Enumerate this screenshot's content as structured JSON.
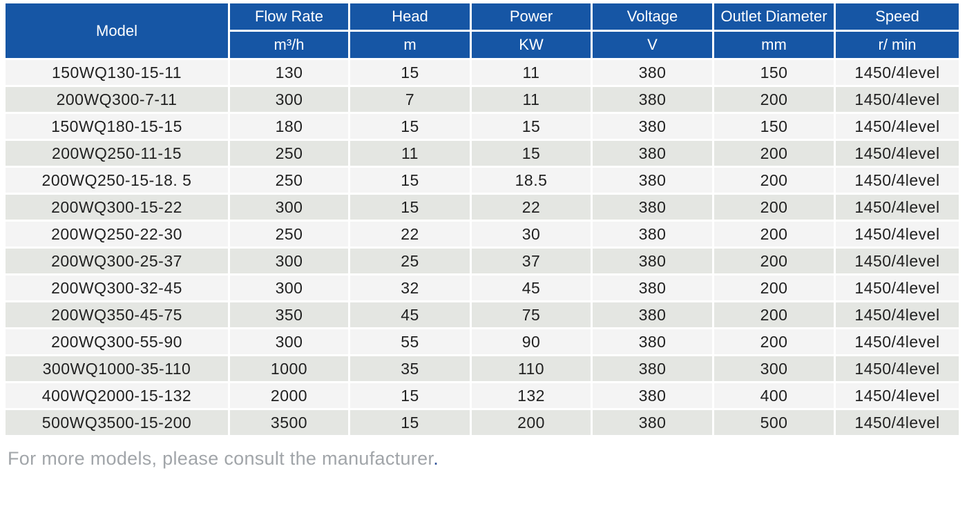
{
  "table": {
    "columns": [
      {
        "key": "model",
        "label": "Model",
        "unit": ""
      },
      {
        "key": "flow_rate",
        "label": "Flow Rate",
        "unit": "m³/h"
      },
      {
        "key": "head",
        "label": "Head",
        "unit": "m"
      },
      {
        "key": "power",
        "label": "Power",
        "unit": "KW"
      },
      {
        "key": "voltage",
        "label": "Voltage",
        "unit": "V"
      },
      {
        "key": "outlet_diameter",
        "label": "Outlet Diameter",
        "unit": "mm"
      },
      {
        "key": "speed",
        "label": "Speed",
        "unit": "r/ min"
      }
    ],
    "rows": [
      [
        "150WQ130-15-11",
        "130",
        "15",
        "11",
        "380",
        "150",
        "1450/4level"
      ],
      [
        "200WQ300-7-11",
        "300",
        "7",
        "11",
        "380",
        "200",
        "1450/4level"
      ],
      [
        "150WQ180-15-15",
        "180",
        "15",
        "15",
        "380",
        "150",
        "1450/4level"
      ],
      [
        "200WQ250-11-15",
        "250",
        "11",
        "15",
        "380",
        "200",
        "1450/4level"
      ],
      [
        "200WQ250-15-18. 5",
        "250",
        "15",
        "18.5",
        "380",
        "200",
        "1450/4level"
      ],
      [
        "200WQ300-15-22",
        "300",
        "15",
        "22",
        "380",
        "200",
        "1450/4level"
      ],
      [
        "200WQ250-22-30",
        "250",
        "22",
        "30",
        "380",
        "200",
        "1450/4level"
      ],
      [
        "200WQ300-25-37",
        "300",
        "25",
        "37",
        "380",
        "200",
        "1450/4level"
      ],
      [
        "200WQ300-32-45",
        "300",
        "32",
        "45",
        "380",
        "200",
        "1450/4level"
      ],
      [
        "200WQ350-45-75",
        "350",
        "45",
        "75",
        "380",
        "200",
        "1450/4level"
      ],
      [
        "200WQ300-55-90",
        "300",
        "55",
        "90",
        "380",
        "200",
        "1450/4level"
      ],
      [
        "300WQ1000-35-110",
        "1000",
        "35",
        "110",
        "380",
        "300",
        "1450/4level"
      ],
      [
        "400WQ2000-15-132",
        "2000",
        "15",
        "132",
        "380",
        "400",
        "1450/4level"
      ],
      [
        "500WQ3500-15-200",
        "3500",
        "15",
        "200",
        "380",
        "500",
        "1450/4level"
      ]
    ]
  },
  "footer": {
    "note": "For more models, please consult the manufacturer",
    "note_period": "."
  },
  "colors": {
    "header_bg": "#1656a5",
    "row_light": "#f4f4f4",
    "row_dark": "#e4e6e2",
    "cell_border": "#ffffff",
    "body_text": "#212121",
    "footer_text": "#a1a5a9",
    "footer_period": "#31549b"
  }
}
